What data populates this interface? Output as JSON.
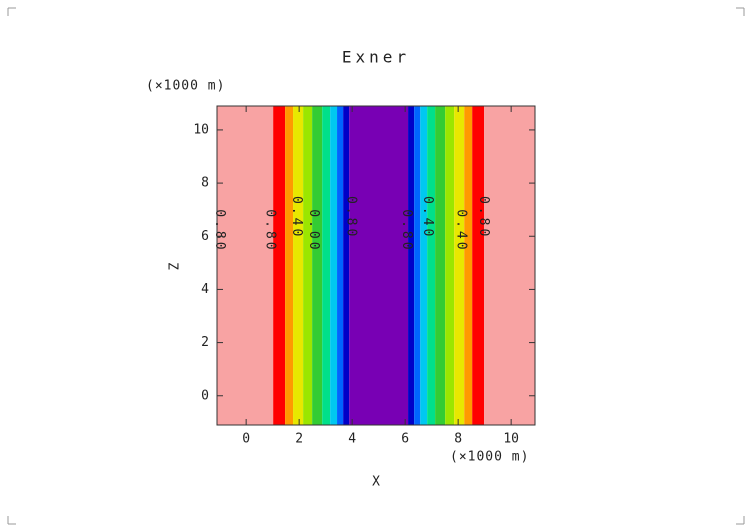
{
  "chart_data": {
    "type": "filled-contour",
    "title": "Exner",
    "x_label": "X",
    "y_label": "Z",
    "x_unit": "(×1000 m)",
    "y_unit": "(×1000 m)",
    "xlim": [
      -1.1,
      10.9
    ],
    "ylim": [
      -1.1,
      10.9
    ],
    "xticks": [
      0,
      2,
      4,
      6,
      8,
      10
    ],
    "yticks": [
      0,
      2,
      4,
      6,
      8,
      10
    ],
    "x_edges": [
      -1.1,
      1.02,
      1.47,
      1.77,
      2.15,
      2.49,
      2.87,
      3.17,
      3.43,
      3.66,
      3.89,
      6.11,
      6.34,
      6.57,
      6.83,
      7.13,
      7.51,
      7.85,
      8.23,
      8.53,
      8.98,
      10.9
    ],
    "colors": [
      "#f8a3a3",
      "#ff0000",
      "#ff9a00",
      "#e8e800",
      "#9be600",
      "#33cc33",
      "#00e08a",
      "#00c8f0",
      "#0064ff",
      "#0000c8",
      "#7800b4",
      "#0000c8",
      "#0064ff",
      "#00c8f0",
      "#00e08a",
      "#33cc33",
      "#9be600",
      "#e8e800",
      "#ff9a00",
      "#ff0000",
      "#f8a3a3"
    ],
    "contour_labels": [
      {
        "x": -1.0,
        "y": 6.2,
        "text": "0.80"
      },
      {
        "x": 0.9,
        "y": 6.2,
        "text": "0.80"
      },
      {
        "x": 1.9,
        "y": 6.7,
        "text": "0.40"
      },
      {
        "x": 2.55,
        "y": 6.2,
        "text": "0.00"
      },
      {
        "x": 3.95,
        "y": 6.7,
        "text": "0.80"
      },
      {
        "x": 6.05,
        "y": 6.2,
        "text": "0.80"
      },
      {
        "x": 6.85,
        "y": 6.7,
        "text": "0.40"
      },
      {
        "x": 8.1,
        "y": 6.2,
        "text": "0.40"
      },
      {
        "x": 8.95,
        "y": 6.7,
        "text": "0.80"
      }
    ]
  }
}
